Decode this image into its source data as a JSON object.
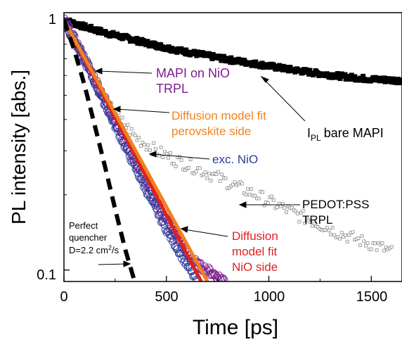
{
  "chart_data": {
    "type": "scatter",
    "xlabel": "Time [ps]",
    "ylabel": "PL intensity [abs.]",
    "xlim": [
      0,
      1650
    ],
    "ylim": [
      0.09,
      1.07
    ],
    "yscale": "log",
    "x_ticks": [
      "0",
      "500",
      "1000",
      "1500"
    ],
    "y_ticks": [
      "0.1",
      "1"
    ],
    "series": [
      {
        "name": "I_PL bare MAPI",
        "marker": "filled-square",
        "color": "#000000",
        "x": [
          0,
          100,
          200,
          300,
          400,
          500,
          600,
          700,
          800,
          900,
          1000,
          1100,
          1200,
          1300,
          1400,
          1500,
          1600,
          1650
        ],
        "y": [
          1.0,
          0.94,
          0.89,
          0.85,
          0.81,
          0.775,
          0.745,
          0.72,
          0.695,
          0.675,
          0.655,
          0.635,
          0.618,
          0.603,
          0.59,
          0.58,
          0.575,
          0.573
        ]
      },
      {
        "name": "MAPI on NiO TRPL",
        "marker": "open-circle",
        "color": "#7b1d8e",
        "x": [
          0,
          100,
          200,
          300,
          400,
          500,
          600,
          650,
          700,
          750,
          780
        ],
        "y": [
          1.0,
          0.7,
          0.48,
          0.33,
          0.225,
          0.158,
          0.118,
          0.105,
          0.1,
          0.094,
          0.091
        ]
      },
      {
        "name": "exc. NiO",
        "marker": "open-circle",
        "color": "#2b3b9a",
        "x": [
          0,
          100,
          200,
          300,
          400,
          500,
          600,
          650
        ],
        "y": [
          1.0,
          0.69,
          0.46,
          0.31,
          0.21,
          0.145,
          0.105,
          0.09
        ]
      },
      {
        "name": "PEDOT:PSS TRPL",
        "marker": "open-square",
        "color": "#8a8a8a",
        "x": [
          150,
          250,
          350,
          450,
          550,
          650,
          750,
          850,
          950,
          1050,
          1150,
          1250,
          1350,
          1450,
          1550,
          1600
        ],
        "y": [
          0.55,
          0.42,
          0.34,
          0.3,
          0.275,
          0.255,
          0.235,
          0.215,
          0.198,
          0.18,
          0.165,
          0.152,
          0.14,
          0.131,
          0.123,
          0.118
        ]
      },
      {
        "name": "Diffusion model fit perovskite side",
        "line": "solid",
        "color": "#f0821e",
        "x": [
          0,
          700
        ],
        "y": [
          1.0,
          0.09
        ]
      },
      {
        "name": "Diffusion model fit NiO side",
        "line": "solid",
        "color": "#e02020",
        "x": [
          0,
          670
        ],
        "y": [
          1.0,
          0.09
        ]
      },
      {
        "name": "Perfect quencher D=2.2 cm2/s",
        "line": "dashed",
        "color": "#000000",
        "x": [
          0,
          50,
          100,
          150,
          200,
          250,
          300,
          345
        ],
        "y": [
          1.0,
          0.76,
          0.55,
          0.38,
          0.26,
          0.175,
          0.12,
          0.09
        ]
      }
    ],
    "annotations": {
      "bare_main": "I",
      "bare_sub": "PL",
      "bare_rest": "bare MAPI",
      "mapi_line1": "MAPI on NiO",
      "mapi_line2": "TRPL",
      "diff_line1": "Diffusion model fit",
      "diff_line2": "perovskite side",
      "exc": "exc. NiO",
      "pedot_line1": "PEDOT:PSS",
      "pedot_line2": "TRPL",
      "nio_line1": "Diffusion",
      "nio_line2": "model fit",
      "nio_line3": "NiO side",
      "pq_line1": "Perfect",
      "pq_line2": "quencher",
      "pq_line3_main": "D=2.2 cm",
      "pq_line3_sup": "2",
      "pq_line3_rest": "/s"
    },
    "colors": {
      "bare": "#000000",
      "mapi": "#7b1d8e",
      "diff": "#f0821e",
      "exc": "#2b3b9a",
      "nio": "#e02020",
      "pedot": "#000000",
      "pq": "#000000"
    }
  }
}
